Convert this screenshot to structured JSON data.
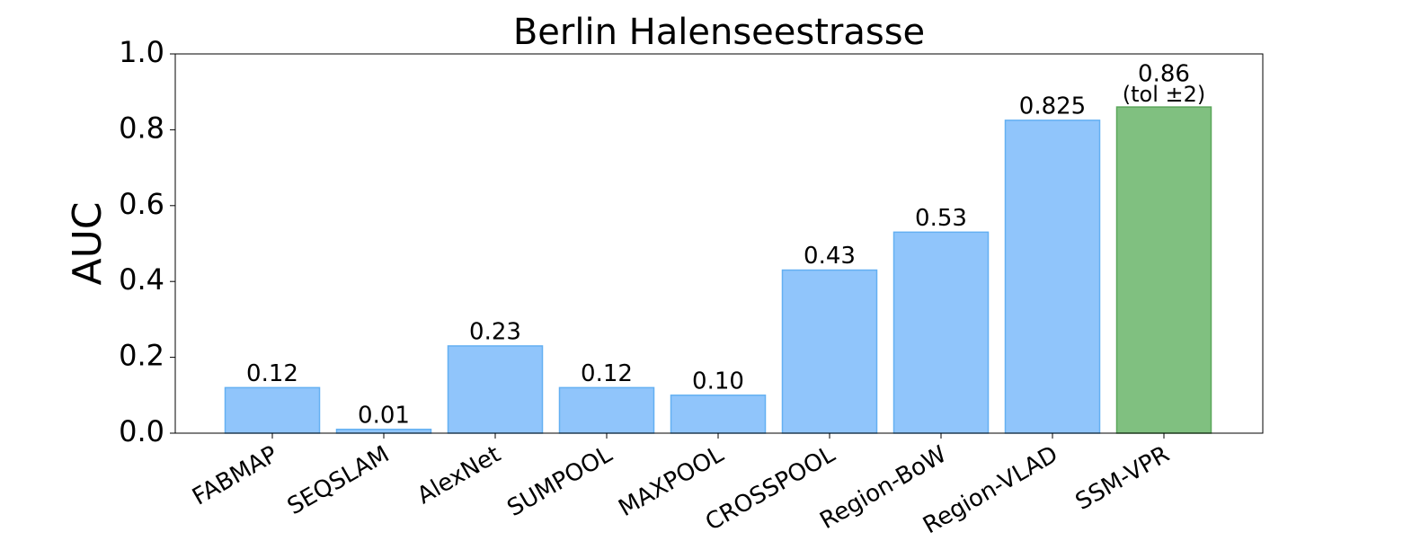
{
  "chart_data": {
    "type": "bar",
    "title": "Berlin Halenseestrasse",
    "y_label": "AUC",
    "categories": [
      "FABMAP",
      "SEQSLAM",
      "AlexNet",
      "SUMPOOL",
      "MAXPOOL",
      "CROSSPOOL",
      "Region-BoW",
      "Region-VLAD",
      "SSM-VPR"
    ],
    "values": [
      0.12,
      0.01,
      0.23,
      0.12,
      0.1,
      0.43,
      0.53,
      0.825,
      0.86
    ],
    "value_labels": [
      "0.12",
      "0.01",
      "0.23",
      "0.12",
      "0.10",
      "0.43",
      "0.53",
      "0.825",
      "0.86"
    ],
    "colors": [
      "#90c5fb",
      "#90c5fb",
      "#90c5fb",
      "#90c5fb",
      "#90c5fb",
      "#90c5fb",
      "#90c5fb",
      "#90c5fb",
      "#80c080"
    ],
    "edge_colors": [
      "#64b0f2",
      "#64b0f2",
      "#64b0f2",
      "#64b0f2",
      "#64b0f2",
      "#64b0f2",
      "#64b0f2",
      "#64b0f2",
      "#5ba65b"
    ],
    "annotation": "(tol ±2)",
    "ylim": [
      0,
      1
    ],
    "yticks": [
      {
        "value": 0,
        "label": "0.0"
      },
      0.2,
      0.4,
      0.6,
      0.8,
      {
        "value": 1,
        "label": "1.0"
      }
    ],
    "grid": false
  }
}
